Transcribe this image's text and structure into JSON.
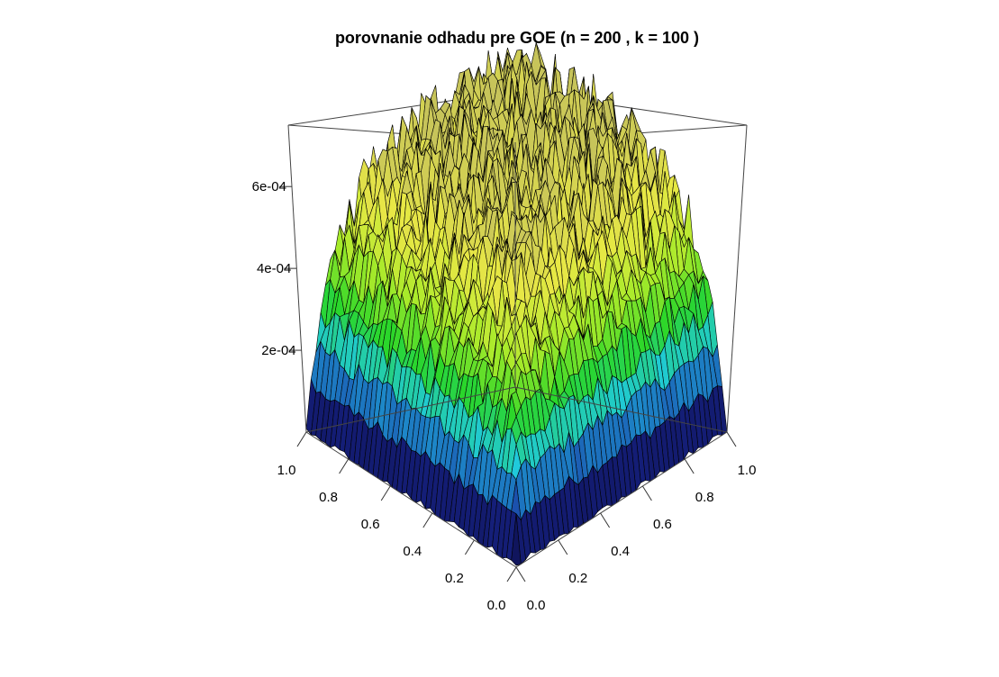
{
  "chart_data": {
    "type": "surface3d",
    "title": "porovnanie odhadu pre GOE (n = 200 , k =  100 )",
    "xlabel": "",
    "ylabel": "",
    "zlabel": "",
    "xlim": [
      0,
      1
    ],
    "ylim": [
      0,
      1
    ],
    "zlim": [
      0,
      0.00075
    ],
    "x_ticks": [
      "0.0",
      "0.2",
      "0.4",
      "0.6",
      "0.8",
      "1.0"
    ],
    "y_ticks": [
      "0.0",
      "0.2",
      "0.4",
      "0.6",
      "0.8",
      "1.0"
    ],
    "z_ticks": [
      "2e-04",
      "4e-04",
      "6e-04"
    ],
    "z_tick_values": [
      0.0002,
      0.0004,
      0.0006
    ],
    "surface": {
      "description_values": "noisy V-shaped surface: near 0 at x=0,y=0 corner, rising to about 6e-04 along far edges",
      "corner_value_at_origin": 0.0,
      "plateau_value": 0.00058,
      "max_value": 0.00075
    },
    "colormap": [
      "#0b0b40",
      "#1a2a9a",
      "#1fc8e8",
      "#2ad62a",
      "#a8ea2a",
      "#e8e845",
      "#c7c45a"
    ],
    "grid": false,
    "legend": "none"
  }
}
